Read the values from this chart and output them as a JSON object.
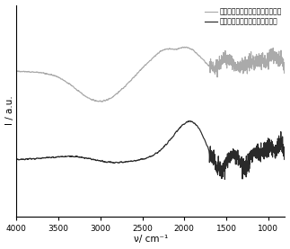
{
  "title": "",
  "xlabel": "ν/ cm⁻¹",
  "ylabel": "I / a.u.",
  "xticks": [
    4000,
    3500,
    3000,
    2500,
    2000,
    1500,
    1000
  ],
  "legend_line1": "离子热法合成钒离子修饰的氮化碳",
  "legend_line2": "浸渍法合成钒离子负载的氮化碳",
  "color_line1": "#aaaaaa",
  "color_line2": "#2a2a2a",
  "background": "#ffffff",
  "legend_fontsize": 5.5,
  "axis_fontsize": 7.5,
  "tick_fontsize": 6.5,
  "linewidth": 0.85
}
